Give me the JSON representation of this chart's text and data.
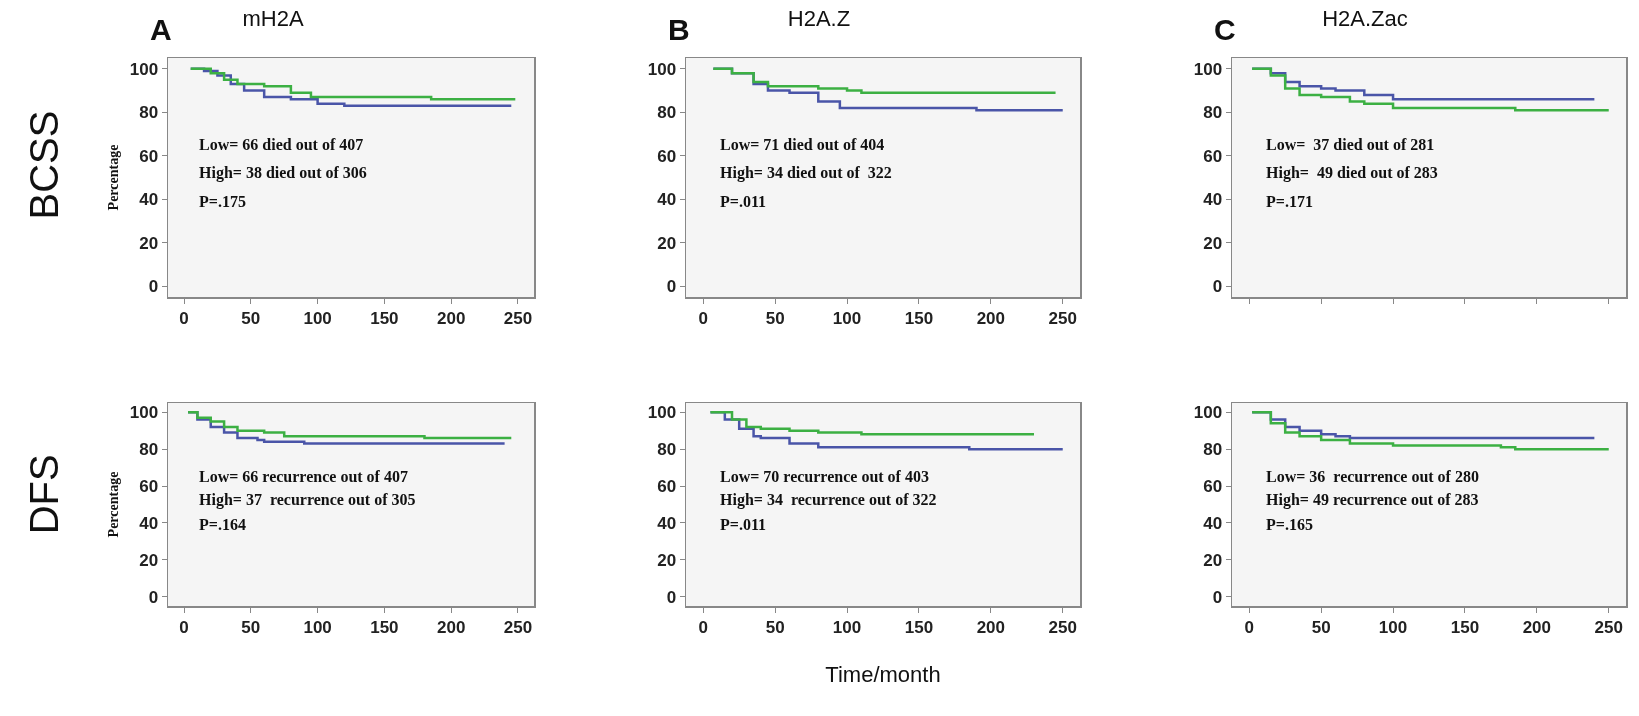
{
  "chart_data": [
    {
      "type": "step",
      "title": "mH2A",
      "ylabel": "Percentage",
      "xlim": [
        -12,
        262
      ],
      "ylim": [
        -5,
        105
      ],
      "xticks": [
        0,
        50,
        100,
        150,
        200,
        250
      ],
      "yticks": [
        0,
        20,
        40,
        60,
        80,
        100
      ],
      "grid": false,
      "annotations": [
        "Low= 66 died out of 407",
        "High= 38 died out of 306",
        "P=.175",
        "A",
        "BCSS"
      ],
      "series": [
        {
          "color": "#4a55a8",
          "x": [
            5,
            15,
            25,
            35,
            45,
            60,
            80,
            100,
            120,
            245
          ],
          "values": [
            100,
            99,
            97,
            93,
            90,
            87,
            86,
            84,
            83,
            83
          ]
        },
        {
          "color": "#3cb043",
          "x": [
            5,
            20,
            30,
            40,
            60,
            80,
            95,
            175,
            185,
            248
          ],
          "values": [
            100,
            98,
            95,
            93,
            92,
            89,
            87,
            87,
            86,
            86
          ]
        }
      ]
    },
    {
      "type": "step",
      "title": "H2A.Z",
      "xlim": [
        -12,
        262
      ],
      "ylim": [
        -5,
        105
      ],
      "xticks": [
        0,
        50,
        100,
        150,
        200,
        250
      ],
      "yticks": [
        0,
        20,
        40,
        60,
        80,
        100
      ],
      "grid": false,
      "annotations": [
        "Low= 71 died out of 404",
        "High= 34 died out of  322",
        "P=.011",
        "B"
      ],
      "series": [
        {
          "color": "#4a55a8",
          "x": [
            7,
            20,
            35,
            45,
            60,
            80,
            95,
            180,
            190,
            250
          ],
          "values": [
            100,
            98,
            93,
            90,
            89,
            85,
            82,
            82,
            81,
            81
          ]
        },
        {
          "color": "#3cb043",
          "x": [
            7,
            20,
            35,
            45,
            80,
            100,
            110,
            245
          ],
          "values": [
            100,
            98,
            94,
            92,
            91,
            90,
            89,
            89
          ]
        }
      ]
    },
    {
      "type": "step",
      "title": "H2A.Zac",
      "xlim": [
        -12,
        262
      ],
      "ylim": [
        -5,
        105
      ],
      "xticks": [
        {
          "value": 0,
          "label": null
        },
        {
          "value": 50,
          "label": null
        },
        {
          "value": 100,
          "label": null
        },
        {
          "value": 150,
          "label": null
        },
        {
          "value": 200,
          "label": null
        },
        {
          "value": 250,
          "label": null
        }
      ],
      "yticks": [
        0,
        20,
        40,
        60,
        80,
        100
      ],
      "tick_labels": "y",
      "grid": false,
      "annotations": [
        "Low=  37 died out of 281",
        "High=  49 died out of 283",
        "P=.171",
        "C"
      ],
      "series": [
        {
          "color": "#4a55a8",
          "x": [
            2,
            15,
            25,
            35,
            50,
            60,
            80,
            100,
            240
          ],
          "values": [
            100,
            98,
            94,
            92,
            91,
            90,
            88,
            86,
            86
          ]
        },
        {
          "color": "#3cb043",
          "x": [
            2,
            15,
            25,
            35,
            50,
            70,
            80,
            100,
            180,
            185,
            250
          ],
          "values": [
            100,
            97,
            91,
            88,
            87,
            85,
            84,
            82,
            82,
            81,
            81
          ]
        }
      ]
    },
    {
      "type": "step",
      "ylabel": "Percentage",
      "xlim": [
        -12,
        262
      ],
      "ylim": [
        -5,
        105
      ],
      "xticks": [
        0,
        50,
        100,
        150,
        200,
        250
      ],
      "yticks": [
        0,
        20,
        40,
        60,
        80,
        100
      ],
      "grid": false,
      "annotations": [
        "Low= 66 recurrence out of 407",
        "High= 37  recurrence out of 305",
        "P=.164",
        "DFS"
      ],
      "series": [
        {
          "color": "#4a55a8",
          "x": [
            3,
            10,
            20,
            30,
            40,
            55,
            60,
            90,
            240
          ],
          "values": [
            100,
            96,
            92,
            89,
            86,
            85,
            84,
            83,
            83
          ]
        },
        {
          "color": "#3cb043",
          "x": [
            3,
            10,
            20,
            30,
            40,
            60,
            75,
            175,
            180,
            245
          ],
          "values": [
            100,
            97,
            95,
            92,
            90,
            89,
            87,
            87,
            86,
            86
          ]
        }
      ]
    },
    {
      "type": "step",
      "xlabel": "Time/month",
      "xlim": [
        -12,
        262
      ],
      "ylim": [
        -5,
        105
      ],
      "xticks": [
        0,
        50,
        100,
        150,
        200,
        250
      ],
      "yticks": [
        0,
        20,
        40,
        60,
        80,
        100
      ],
      "grid": false,
      "annotations": [
        "Low= 70 recurrence out of 403",
        "High= 34  recurrence out of 322",
        "P=.011"
      ],
      "series": [
        {
          "color": "#4a55a8",
          "x": [
            5,
            15,
            25,
            35,
            40,
            60,
            80,
            180,
            185,
            250
          ],
          "values": [
            100,
            96,
            91,
            87,
            86,
            83,
            81,
            81,
            80,
            80
          ]
        },
        {
          "color": "#3cb043",
          "x": [
            5,
            20,
            30,
            40,
            60,
            80,
            100,
            110,
            230
          ],
          "values": [
            100,
            96,
            92,
            91,
            90,
            89,
            89,
            88,
            88
          ]
        }
      ]
    },
    {
      "type": "step",
      "xlim": [
        -12,
        262
      ],
      "ylim": [
        -5,
        105
      ],
      "xticks": [
        0,
        50,
        100,
        150,
        200,
        250
      ],
      "yticks": [
        0,
        20,
        40,
        60,
        80,
        100
      ],
      "grid": false,
      "annotations": [
        "Low= 36  recurrence out of 280",
        "High= 49 recurrence out of 283",
        "P=.165"
      ],
      "series": [
        {
          "color": "#4a55a8",
          "x": [
            2,
            15,
            25,
            35,
            50,
            60,
            70,
            240
          ],
          "values": [
            100,
            96,
            92,
            90,
            88,
            87,
            86,
            86
          ]
        },
        {
          "color": "#3cb043",
          "x": [
            2,
            15,
            25,
            35,
            50,
            70,
            100,
            175,
            185,
            250
          ],
          "values": [
            100,
            94,
            89,
            87,
            85,
            83,
            82,
            81,
            80,
            80
          ]
        }
      ]
    }
  ]
}
